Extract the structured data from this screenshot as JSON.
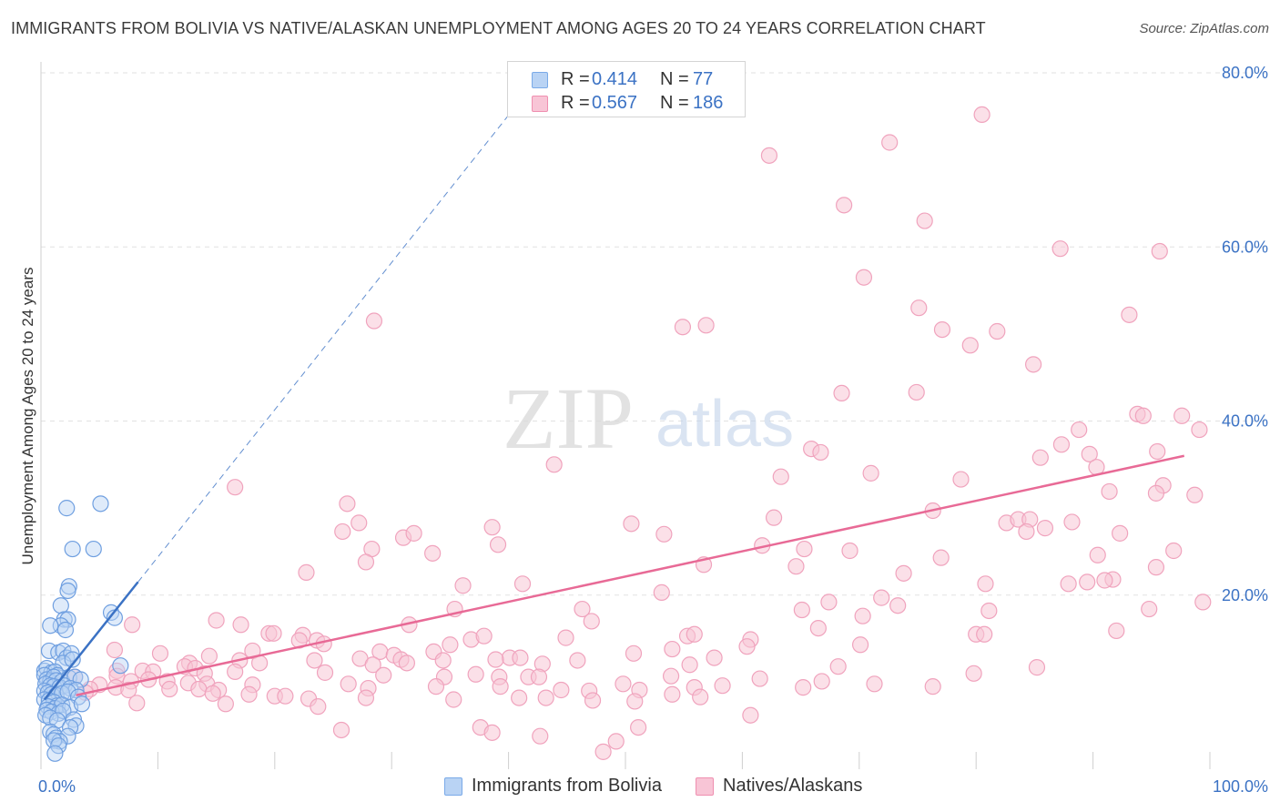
{
  "title": "IMMIGRANTS FROM BOLIVIA VS NATIVE/ALASKAN UNEMPLOYMENT AMONG AGES 20 TO 24 YEARS CORRELATION CHART",
  "source": "Source: ZipAtlas.com",
  "watermark": {
    "zip": "ZIP",
    "atlas": "atlas"
  },
  "legend": {
    "rows": [
      {
        "r_label": "R =",
        "r_value": "0.414",
        "n_label": "N =",
        "n_value": "77",
        "color": "#7aaae8",
        "fill": "#b9d3f4"
      },
      {
        "r_label": "R =",
        "r_value": "0.567",
        "n_label": "N =",
        "n_value": "186",
        "color": "#ef8fb0",
        "fill": "#f8c5d6"
      }
    ]
  },
  "bottom_legend": [
    "Immigrants from Bolivia",
    "Natives/Alaskans"
  ],
  "colors": {
    "blue": "#3b72c4",
    "blue_pt": "#6f9fe0",
    "pink": "#e86a96",
    "pink_pt": "#f0a3bd",
    "grid": "#e2e2e2",
    "tick_text": "#3b72c4"
  },
  "chart_data": {
    "type": "scatter",
    "title": "IMMIGRANTS FROM BOLIVIA VS NATIVE/ALASKAN UNEMPLOYMENT AMONG AGES 20 TO 24 YEARS CORRELATION CHART",
    "xlabel": "",
    "ylabel": "Unemployment Among Ages 20 to 24 years",
    "xlim": [
      0,
      100
    ],
    "ylim": [
      0,
      82
    ],
    "x_tick_labels": [
      "0.0%",
      "100.0%"
    ],
    "y_ticks": [
      20,
      40,
      60,
      80
    ],
    "y_tick_labels": [
      "20.0%",
      "40.0%",
      "60.0%",
      "80.0%"
    ],
    "series": [
      {
        "name": "Immigrants from Bolivia",
        "color": "#6f9fe0",
        "r": 0.414,
        "n": 77,
        "trend": {
          "x": [
            0.3,
            8.3
          ],
          "y": [
            8.0,
            21.5
          ],
          "dash_to": [
            41.4,
            77.5
          ]
        },
        "points": [
          [
            2.2,
            30
          ],
          [
            5.1,
            30.5
          ],
          [
            2.7,
            25.3
          ],
          [
            4.5,
            25.3
          ],
          [
            2.4,
            21
          ],
          [
            2.3,
            20.5
          ],
          [
            1.7,
            18.8
          ],
          [
            6,
            18
          ],
          [
            6.3,
            17.4
          ],
          [
            2,
            17.2
          ],
          [
            2.3,
            17.2
          ],
          [
            1.7,
            16.5
          ],
          [
            2.1,
            16
          ],
          [
            0.8,
            16.5
          ],
          [
            0.7,
            13.6
          ],
          [
            1.5,
            13.4
          ],
          [
            1.9,
            13.6
          ],
          [
            2.2,
            12.8
          ],
          [
            2.6,
            13.3
          ],
          [
            1.9,
            12.2
          ],
          [
            2.7,
            12.6
          ],
          [
            6.8,
            11.9
          ],
          [
            0.3,
            11.3
          ],
          [
            0.5,
            11.6
          ],
          [
            0.9,
            11.1
          ],
          [
            1.2,
            11.2
          ],
          [
            1.4,
            10.8
          ],
          [
            0.3,
            10.8
          ],
          [
            0.5,
            10.3
          ],
          [
            0.8,
            10.1
          ],
          [
            1.1,
            10.6
          ],
          [
            1.3,
            10.2
          ],
          [
            1.8,
            10.1
          ],
          [
            2.4,
            10.5
          ],
          [
            2.9,
            10.6
          ],
          [
            3.4,
            10.3
          ],
          [
            0.4,
            9.8
          ],
          [
            0.8,
            9.6
          ],
          [
            1.1,
            9.5
          ],
          [
            1.6,
            9.4
          ],
          [
            2,
            9.6
          ],
          [
            2.5,
            9.3
          ],
          [
            3,
            9.1
          ],
          [
            0.3,
            9
          ],
          [
            0.6,
            8.8
          ],
          [
            0.9,
            8.6
          ],
          [
            1.3,
            8.5
          ],
          [
            1.8,
            8.7
          ],
          [
            2.3,
            8.9
          ],
          [
            3.2,
            8.3
          ],
          [
            0.3,
            8
          ],
          [
            0.7,
            7.9
          ],
          [
            1.1,
            7.7
          ],
          [
            1.4,
            7.3
          ],
          [
            0.6,
            7.2
          ],
          [
            1.2,
            7
          ],
          [
            1.8,
            7.4
          ],
          [
            2.5,
            7.1
          ],
          [
            3.5,
            7.5
          ],
          [
            0.5,
            6.8
          ],
          [
            0.9,
            6.6
          ],
          [
            1.5,
            6.4
          ],
          [
            1.9,
            6.7
          ],
          [
            0.4,
            6.2
          ],
          [
            0.8,
            5.9
          ],
          [
            1.4,
            5.6
          ],
          [
            2.8,
            5.7
          ],
          [
            3,
            5
          ],
          [
            2.5,
            4.8
          ],
          [
            0.8,
            4.3
          ],
          [
            1.1,
            4
          ],
          [
            1.3,
            3.6
          ],
          [
            2.3,
            3.8
          ],
          [
            1.6,
            3.2
          ],
          [
            1.1,
            3.3
          ],
          [
            1.5,
            2.7
          ],
          [
            1.2,
            1.8
          ]
        ]
      },
      {
        "name": "Natives/Alaskans",
        "color": "#f0a3bd",
        "r": 0.567,
        "n": 186,
        "trend": {
          "x": [
            3.0,
            97.8
          ],
          "y": [
            8.5,
            36.0
          ]
        },
        "points": [
          [
            80.5,
            75.2
          ],
          [
            72.6,
            72
          ],
          [
            62.3,
            70.5
          ],
          [
            68.7,
            64.8
          ],
          [
            75.6,
            63
          ],
          [
            95.7,
            59.5
          ],
          [
            87.2,
            59.8
          ],
          [
            70.4,
            56.5
          ],
          [
            28.5,
            51.5
          ],
          [
            54.9,
            50.8
          ],
          [
            56.9,
            51
          ],
          [
            75.1,
            53
          ],
          [
            77.1,
            50.5
          ],
          [
            79.5,
            48.7
          ],
          [
            81.8,
            50.3
          ],
          [
            93.1,
            52.2
          ],
          [
            84.9,
            46.5
          ],
          [
            68.5,
            43.2
          ],
          [
            74.9,
            43.3
          ],
          [
            93.8,
            40.8
          ],
          [
            94.3,
            40.6
          ],
          [
            97.6,
            40.6
          ],
          [
            99.1,
            39
          ],
          [
            88.8,
            39
          ],
          [
            85.5,
            35.8
          ],
          [
            87.3,
            37.3
          ],
          [
            89.7,
            36.2
          ],
          [
            95.5,
            36.5
          ],
          [
            65.9,
            36.8
          ],
          [
            66.7,
            36.4
          ],
          [
            90.3,
            34.7
          ],
          [
            43.9,
            35
          ],
          [
            63.3,
            33.6
          ],
          [
            71,
            34
          ],
          [
            78.7,
            33.3
          ],
          [
            16.6,
            32.4
          ],
          [
            96,
            32.6
          ],
          [
            91.4,
            31.9
          ],
          [
            95.4,
            31.7
          ],
          [
            98.7,
            31.5
          ],
          [
            26.2,
            30.5
          ],
          [
            76.3,
            29.7
          ],
          [
            82.6,
            28.3
          ],
          [
            83.6,
            28.7
          ],
          [
            84.6,
            28.7
          ],
          [
            88.2,
            28.4
          ],
          [
            27.2,
            28.3
          ],
          [
            38.6,
            27.8
          ],
          [
            50.5,
            28.2
          ],
          [
            53.3,
            27
          ],
          [
            62.7,
            28.9
          ],
          [
            84.3,
            27.3
          ],
          [
            85.9,
            27.7
          ],
          [
            92.3,
            27.1
          ],
          [
            25.8,
            27.3
          ],
          [
            31,
            26.6
          ],
          [
            31.9,
            27.1
          ],
          [
            28.3,
            25.3
          ],
          [
            39.1,
            25.8
          ],
          [
            33.5,
            24.8
          ],
          [
            61.7,
            25.7
          ],
          [
            65.3,
            25.3
          ],
          [
            69.2,
            25.1
          ],
          [
            77,
            24.3
          ],
          [
            27.8,
            23.8
          ],
          [
            56.7,
            23.5
          ],
          [
            64.6,
            23.3
          ],
          [
            95.4,
            23.2
          ],
          [
            96.9,
            25.1
          ],
          [
            90.4,
            24.6
          ],
          [
            22.7,
            22.6
          ],
          [
            73.8,
            22.5
          ],
          [
            91.7,
            21.8
          ],
          [
            36.1,
            21.1
          ],
          [
            41.2,
            21.3
          ],
          [
            87.9,
            21.3
          ],
          [
            80.8,
            21.3
          ],
          [
            89.5,
            21.5
          ],
          [
            91,
            21.7
          ],
          [
            53.1,
            20.3
          ],
          [
            71.9,
            19.7
          ],
          [
            67.4,
            19.2
          ],
          [
            73.3,
            18.8
          ],
          [
            35.4,
            18.4
          ],
          [
            46.3,
            18.4
          ],
          [
            65.1,
            18.3
          ],
          [
            81.1,
            18.2
          ],
          [
            17.1,
            16.6
          ],
          [
            15,
            17.1
          ],
          [
            31.5,
            16.6
          ],
          [
            47.1,
            17
          ],
          [
            70.3,
            17.6
          ],
          [
            94.8,
            18.4
          ],
          [
            99.4,
            19.2
          ],
          [
            66.5,
            16.2
          ],
          [
            7.8,
            16.6
          ],
          [
            19.5,
            15.6
          ],
          [
            19.9,
            15.6
          ],
          [
            22.4,
            15.4
          ],
          [
            36.8,
            14.9
          ],
          [
            37.9,
            15.3
          ],
          [
            44.9,
            15.1
          ],
          [
            55.3,
            15.3
          ],
          [
            55.9,
            15.5
          ],
          [
            60.7,
            14.9
          ],
          [
            22.1,
            14.8
          ],
          [
            23.6,
            14.8
          ],
          [
            24.2,
            14.4
          ],
          [
            35,
            14.3
          ],
          [
            54,
            13.8
          ],
          [
            60.4,
            14.1
          ],
          [
            70.1,
            14.3
          ],
          [
            80,
            15.5
          ],
          [
            80.7,
            15.5
          ],
          [
            92,
            15.9
          ],
          [
            6.3,
            13.7
          ],
          [
            10.2,
            13.3
          ],
          [
            14.4,
            13
          ],
          [
            18.1,
            13.6
          ],
          [
            29,
            13.5
          ],
          [
            30.2,
            13.1
          ],
          [
            33.6,
            13.5
          ],
          [
            40.1,
            12.8
          ],
          [
            41,
            12.8
          ],
          [
            45.9,
            12.5
          ],
          [
            50.7,
            13.3
          ],
          [
            57.6,
            12.8
          ],
          [
            17,
            12.5
          ],
          [
            23.4,
            12.5
          ],
          [
            27.3,
            12.7
          ],
          [
            30.8,
            12.6
          ],
          [
            38.9,
            12.6
          ],
          [
            34.4,
            12.5
          ],
          [
            12.7,
            12.2
          ],
          [
            18.7,
            12.2
          ],
          [
            28.4,
            12
          ],
          [
            31.3,
            12.2
          ],
          [
            42.9,
            12.1
          ],
          [
            55.5,
            12
          ],
          [
            68.2,
            11.8
          ],
          [
            79.8,
            11
          ],
          [
            85.2,
            11.7
          ],
          [
            12.3,
            11.8
          ],
          [
            13.2,
            11.6
          ],
          [
            6.5,
            11.3
          ],
          [
            8.7,
            11.3
          ],
          [
            9.6,
            11.2
          ],
          [
            14,
            11
          ],
          [
            16.6,
            11.2
          ],
          [
            24.3,
            11.1
          ],
          [
            29.3,
            10.8
          ],
          [
            34.5,
            10.6
          ],
          [
            37.2,
            10.9
          ],
          [
            39.2,
            10.6
          ],
          [
            41.7,
            10.6
          ],
          [
            42.6,
            10.6
          ],
          [
            53.9,
            10.7
          ],
          [
            61.5,
            10.4
          ],
          [
            66.8,
            10.1
          ],
          [
            71.3,
            9.8
          ],
          [
            2.9,
            10.6
          ],
          [
            6.5,
            10.7
          ],
          [
            7.7,
            10.1
          ],
          [
            9.2,
            10.3
          ],
          [
            10.8,
            10.1
          ],
          [
            12.6,
            9.9
          ],
          [
            14.2,
            9.8
          ],
          [
            18.1,
            9.7
          ],
          [
            5,
            9.7
          ],
          [
            4.2,
            9.2
          ],
          [
            6.4,
            9.4
          ],
          [
            7.5,
            9.1
          ],
          [
            11,
            9.2
          ],
          [
            13.5,
            9.2
          ],
          [
            15.2,
            9.1
          ],
          [
            26.3,
            9.8
          ],
          [
            28,
            9.3
          ],
          [
            33.8,
            9.5
          ],
          [
            39.3,
            9.5
          ],
          [
            44.5,
            9.1
          ],
          [
            46.9,
            9
          ],
          [
            51.2,
            9.1
          ],
          [
            49.8,
            9.8
          ],
          [
            55.9,
            9.4
          ],
          [
            58.3,
            9.6
          ],
          [
            65.2,
            9.4
          ],
          [
            76.3,
            9.5
          ],
          [
            3.8,
            8.8
          ],
          [
            14.7,
            8.7
          ],
          [
            17.8,
            8.6
          ],
          [
            20,
            8.4
          ],
          [
            20.9,
            8.4
          ],
          [
            22.9,
            8.1
          ],
          [
            27.8,
            8.2
          ],
          [
            35.3,
            8
          ],
          [
            40.9,
            8.2
          ],
          [
            43.2,
            8.2
          ],
          [
            47.2,
            7.9
          ],
          [
            50.8,
            7.8
          ],
          [
            54,
            8.6
          ],
          [
            56.4,
            8.3
          ],
          [
            8.2,
            7.6
          ],
          [
            15.8,
            7.5
          ],
          [
            23.7,
            7.2
          ],
          [
            60.7,
            6.2
          ],
          [
            51.1,
            4.8
          ],
          [
            25.7,
            4.5
          ],
          [
            37.6,
            4.8
          ],
          [
            38.6,
            4.2
          ],
          [
            42.7,
            3.8
          ],
          [
            49.2,
            3.2
          ],
          [
            48.1,
            2
          ]
        ]
      }
    ]
  }
}
